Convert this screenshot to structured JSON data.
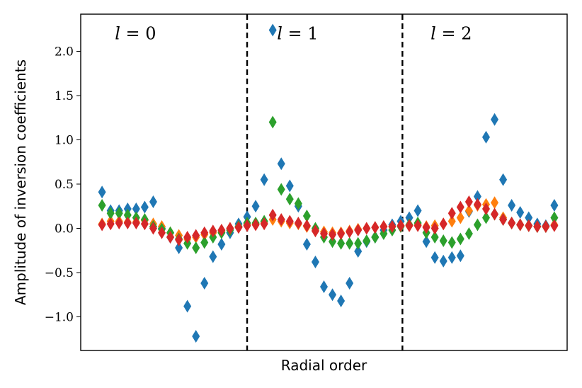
{
  "chart_data": {
    "type": "scatter",
    "marker": "diamond",
    "xlabel": "Radial order",
    "ylabel": "Amplitude of inversion coefficients",
    "ylim": [
      -1.38,
      2.42
    ],
    "xlim": [
      -0.5,
      56.5
    ],
    "yticks": [
      -1.0,
      -0.5,
      0.0,
      0.5,
      1.0,
      1.5,
      2.0
    ],
    "ytick_labels": [
      "−1.0",
      "−0.5",
      "0.0",
      "0.5",
      "1.0",
      "1.5",
      "2.0"
    ],
    "show_xticks": false,
    "grid": false,
    "legend": "none",
    "dividers": [
      {
        "x": 19,
        "style": "dashed"
      },
      {
        "x": 37.2,
        "style": "dashed"
      }
    ],
    "annotations": [
      {
        "var": "l",
        "text": " = 0",
        "x": 3.5,
        "y": 2.2
      },
      {
        "var": "l",
        "text": " = 1",
        "x": 22.5,
        "y": 2.2
      },
      {
        "var": "l",
        "text": " = 2",
        "x": 40.5,
        "y": 2.2
      }
    ],
    "series": [
      {
        "color": "#1f77b4",
        "x": [
          2,
          3,
          4,
          5,
          6,
          7,
          8,
          9,
          10,
          11,
          12,
          13,
          14,
          15,
          16,
          17,
          18,
          19,
          20,
          21,
          22,
          23,
          24,
          25,
          26,
          27,
          28,
          29,
          30,
          31,
          32,
          33,
          34,
          35,
          36,
          37,
          38,
          39,
          40,
          41,
          42,
          43,
          44,
          45,
          46,
          47,
          48,
          49,
          50,
          51,
          52,
          53,
          54,
          55
        ],
        "values": [
          0.41,
          0.2,
          0.2,
          0.22,
          0.22,
          0.24,
          0.3,
          0.0,
          -0.1,
          -0.22,
          -0.88,
          -1.22,
          -0.62,
          -0.32,
          -0.18,
          -0.05,
          0.05,
          0.13,
          0.25,
          0.55,
          2.24,
          0.73,
          0.48,
          0.25,
          -0.18,
          -0.38,
          -0.66,
          -0.75,
          -0.82,
          -0.62,
          -0.26,
          -0.15,
          -0.1,
          -0.02,
          0.04,
          0.08,
          0.12,
          0.2,
          -0.15,
          -0.33,
          -0.37,
          -0.33,
          -0.31,
          0.19,
          0.36,
          1.03,
          1.23,
          0.55,
          0.26,
          0.18,
          0.12,
          0.05,
          0.03,
          0.26
        ]
      },
      {
        "color": "#ff7f0e",
        "x": [
          2,
          3,
          4,
          5,
          6,
          7,
          8,
          9,
          10,
          11,
          12,
          13,
          14,
          15,
          16,
          17,
          18,
          19,
          20,
          21,
          22,
          23,
          24,
          25,
          26,
          27,
          28,
          29,
          30,
          31,
          32,
          33,
          34,
          35,
          36,
          37,
          38,
          39,
          40,
          41,
          42,
          43,
          44,
          45,
          46,
          47,
          48,
          49,
          50,
          51,
          52,
          53,
          54,
          55
        ],
        "values": [
          0.05,
          0.08,
          0.08,
          0.07,
          0.07,
          0.09,
          0.05,
          0.02,
          -0.05,
          -0.08,
          -0.12,
          -0.1,
          -0.07,
          -0.05,
          -0.03,
          0.0,
          0.02,
          0.04,
          0.05,
          0.06,
          0.1,
          0.08,
          0.06,
          0.05,
          0.02,
          -0.02,
          -0.04,
          -0.05,
          -0.05,
          -0.03,
          -0.01,
          0.0,
          0.01,
          0.02,
          0.02,
          0.03,
          0.03,
          0.04,
          0.02,
          0.03,
          0.05,
          0.08,
          0.12,
          0.2,
          0.26,
          0.27,
          0.29,
          0.12,
          0.06,
          0.04,
          0.03,
          0.02,
          0.02,
          0.04
        ]
      },
      {
        "color": "#2ca02c",
        "x": [
          2,
          3,
          4,
          5,
          6,
          7,
          8,
          9,
          10,
          11,
          12,
          13,
          14,
          15,
          16,
          17,
          18,
          19,
          20,
          21,
          22,
          23,
          24,
          25,
          26,
          27,
          28,
          29,
          30,
          31,
          32,
          33,
          34,
          35,
          36,
          37,
          38,
          39,
          40,
          41,
          42,
          43,
          44,
          45,
          46,
          47,
          48,
          49,
          50,
          51,
          52,
          53,
          54,
          55
        ],
        "values": [
          0.26,
          0.17,
          0.17,
          0.15,
          0.12,
          0.1,
          0.02,
          -0.01,
          -0.05,
          -0.12,
          -0.17,
          -0.22,
          -0.16,
          -0.1,
          -0.05,
          -0.02,
          0.02,
          0.06,
          0.06,
          0.08,
          1.2,
          0.44,
          0.33,
          0.28,
          0.14,
          0.0,
          -0.1,
          -0.15,
          -0.17,
          -0.17,
          -0.17,
          -0.14,
          -0.1,
          -0.06,
          -0.02,
          0.02,
          0.04,
          0.06,
          -0.05,
          -0.1,
          -0.14,
          -0.16,
          -0.12,
          -0.06,
          0.04,
          0.12,
          0.16,
          0.1,
          0.06,
          0.04,
          0.03,
          0.02,
          0.02,
          0.12
        ]
      },
      {
        "color": "#d62728",
        "x": [
          2,
          3,
          4,
          5,
          6,
          7,
          8,
          9,
          10,
          11,
          12,
          13,
          14,
          15,
          16,
          17,
          18,
          19,
          20,
          21,
          22,
          23,
          24,
          25,
          26,
          27,
          28,
          29,
          30,
          31,
          32,
          33,
          34,
          35,
          36,
          37,
          38,
          39,
          40,
          41,
          42,
          43,
          44,
          45,
          46,
          47,
          48,
          49,
          50,
          51,
          52,
          53,
          54,
          55
        ],
        "values": [
          0.04,
          0.05,
          0.06,
          0.06,
          0.06,
          0.05,
          0.0,
          -0.05,
          -0.1,
          -0.13,
          -0.1,
          -0.08,
          -0.05,
          -0.03,
          -0.02,
          0.0,
          0.01,
          0.03,
          0.04,
          0.05,
          0.15,
          0.1,
          0.08,
          0.06,
          0.03,
          -0.03,
          -0.06,
          -0.07,
          -0.06,
          -0.04,
          -0.02,
          0.0,
          0.01,
          0.02,
          0.02,
          0.03,
          0.03,
          0.03,
          0.01,
          0.0,
          0.05,
          0.17,
          0.24,
          0.3,
          0.27,
          0.22,
          0.16,
          0.1,
          0.06,
          0.04,
          0.03,
          0.02,
          0.02,
          0.03
        ]
      }
    ]
  }
}
